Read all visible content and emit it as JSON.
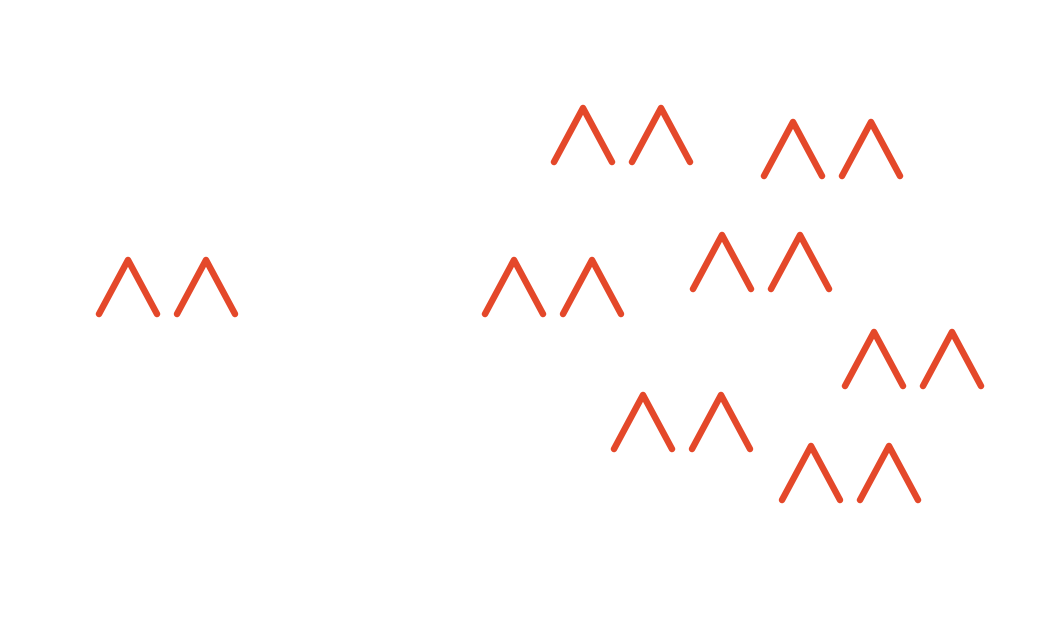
{
  "scene": {
    "background": "#ffffff",
    "mark_color": "#E4482A",
    "icon_name": "double-chevron-up-icon",
    "mark_count": 8
  }
}
